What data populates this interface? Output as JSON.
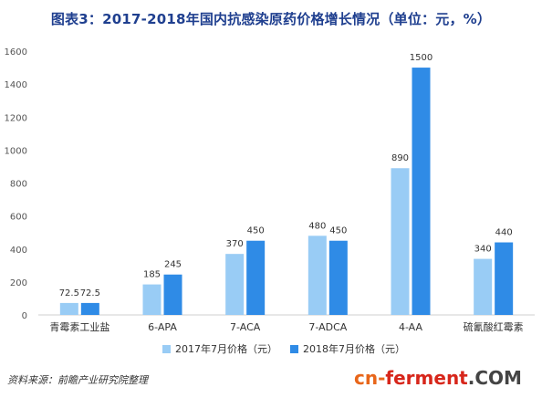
{
  "chart_data": {
    "type": "bar",
    "title": "图表3：2017-2018年国内抗感染原药价格增长情况（单位：元，%）",
    "categories": [
      "青霉素工业盐",
      "6-APA",
      "7-ACA",
      "7-ADCA",
      "4-AA",
      "硫氰酸红霉素"
    ],
    "series": [
      {
        "name": "2017年7月价格（元）",
        "values": [
          72.5,
          185,
          370,
          480,
          890,
          340
        ],
        "labels": [
          "72.5",
          "185",
          "370",
          "480",
          "890",
          "340"
        ],
        "color": "#99ccf5"
      },
      {
        "name": "2018年7月价格（元）",
        "values": [
          72.5,
          245,
          450,
          450,
          1500,
          440
        ],
        "labels": [
          "72.5",
          "245",
          "450",
          "450",
          "1500",
          "440"
        ],
        "color": "#2f8be6"
      }
    ],
    "ylim": [
      0,
      1600
    ],
    "yticks": [
      0,
      200,
      400,
      600,
      800,
      1000,
      1200,
      1400,
      1600
    ],
    "grid": false,
    "legend_position": "bottom"
  },
  "footer": {
    "source": "资料来源：前瞻产业研究院整理",
    "logo_part1": "cn-",
    "logo_part2": "ferment",
    "logo_part3": ".COM"
  }
}
